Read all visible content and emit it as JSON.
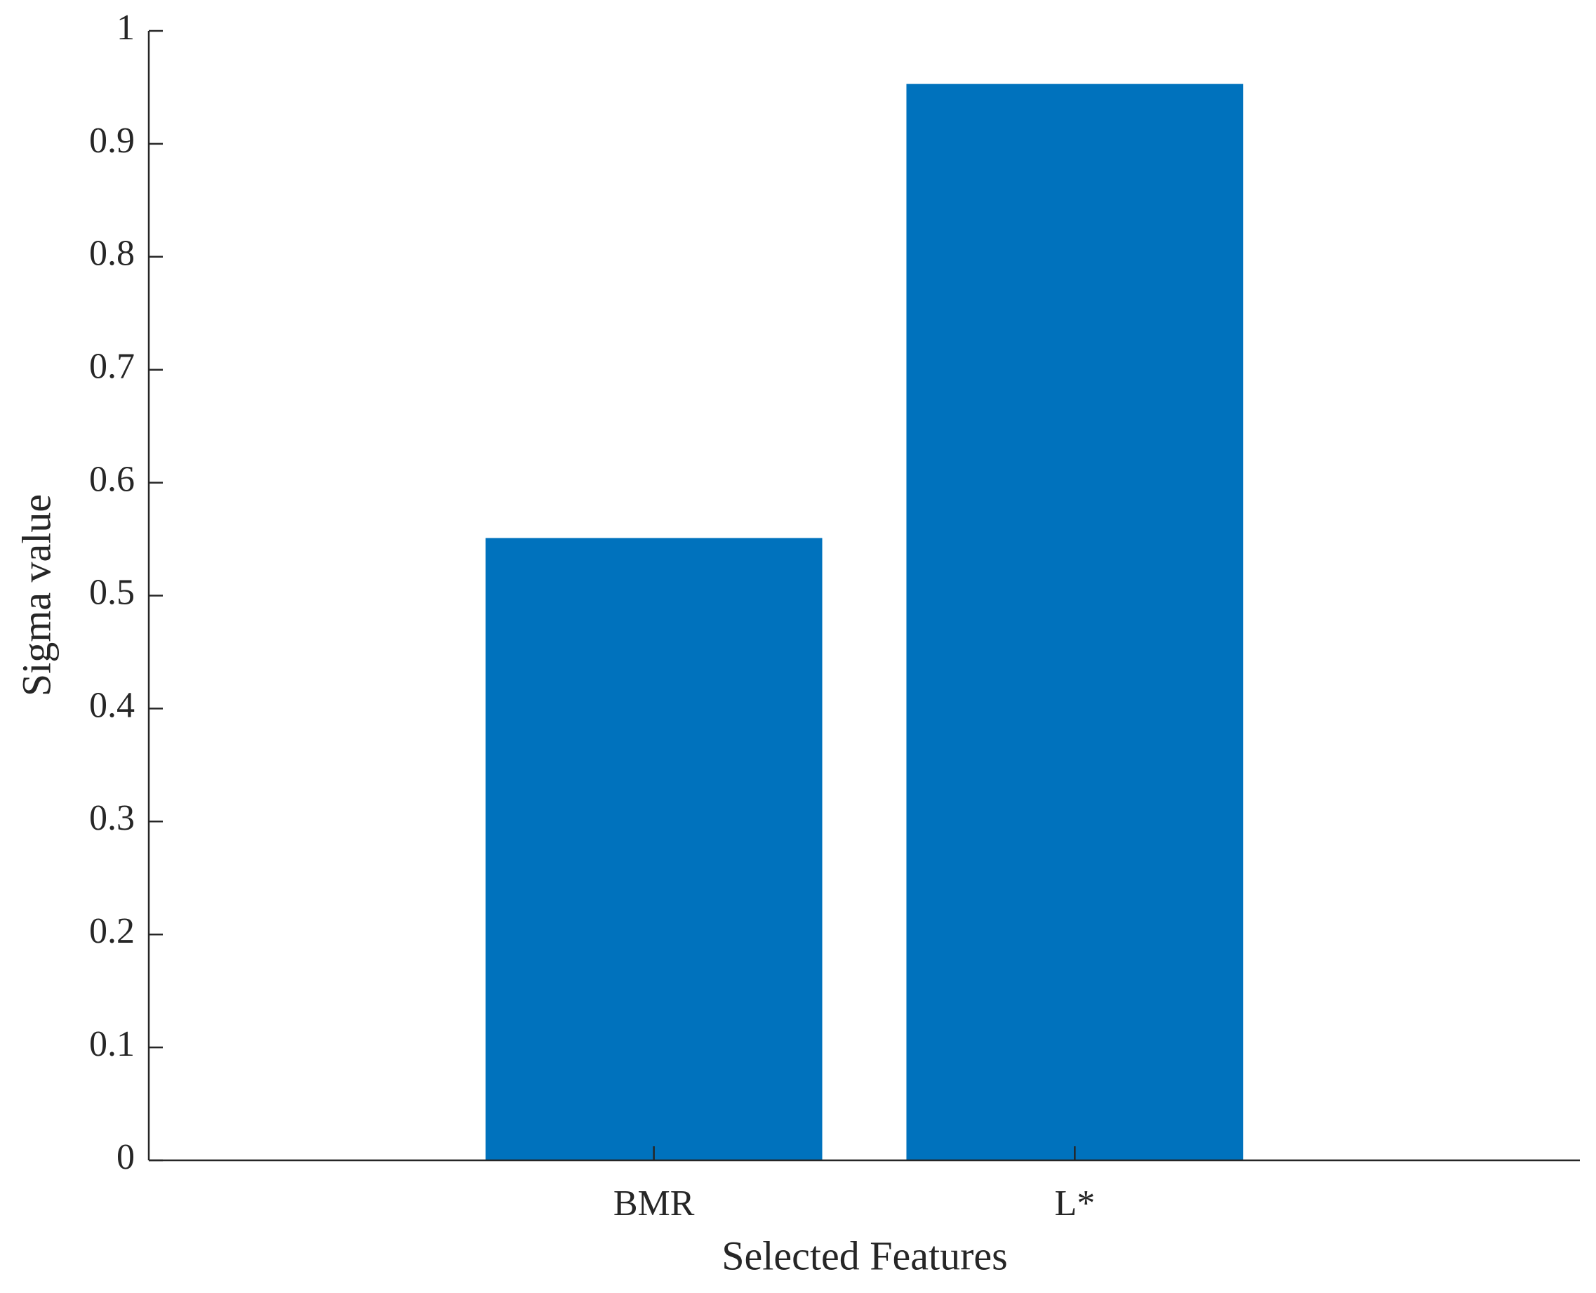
{
  "chart_data": {
    "type": "bar",
    "categories": [
      "BMR",
      "L*"
    ],
    "values": [
      0.551,
      0.953
    ],
    "color": "#0072bd",
    "xlabel": "Selected Features",
    "ylabel": "Sigma value",
    "ylim": [
      0,
      1
    ],
    "yticks": [
      0,
      0.1,
      0.2,
      0.3,
      0.4,
      0.5,
      0.6,
      0.7,
      0.8,
      0.9,
      1
    ],
    "grid": false
  }
}
